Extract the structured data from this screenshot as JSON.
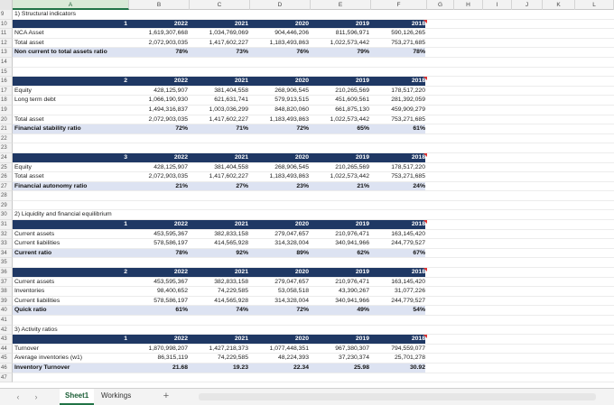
{
  "columns": [
    "A",
    "B",
    "C",
    "D",
    "E",
    "F",
    "G",
    "H",
    "I",
    "J",
    "K",
    "L"
  ],
  "selected_column": "A",
  "rows": [
    {
      "n": "9",
      "type": "sect",
      "label": "1) Structural indicators"
    },
    {
      "n": "10",
      "type": "hdr",
      "idx": "1",
      "years": [
        "2022",
        "2021",
        "2020",
        "2019",
        "2018"
      ]
    },
    {
      "n": "11",
      "type": "data",
      "label": "NCA Asset",
      "vals": [
        "1,619,307,668",
        "1,034,769,069",
        "904,446,206",
        "811,596,971",
        "590,126,265"
      ]
    },
    {
      "n": "12",
      "type": "data",
      "label": "Total asset",
      "vals": [
        "2,072,903,035",
        "1,417,602,227",
        "1,183,493,863",
        "1,022,573,442",
        "753,271,685"
      ]
    },
    {
      "n": "13",
      "type": "ratio",
      "label": "Non current to total assets ratio",
      "vals": [
        "78%",
        "73%",
        "76%",
        "79%",
        "78%"
      ]
    },
    {
      "n": "14",
      "type": "blank"
    },
    {
      "n": "15",
      "type": "blank"
    },
    {
      "n": "16",
      "type": "hdr",
      "idx": "2",
      "years": [
        "2022",
        "2021",
        "2020",
        "2019",
        "2018"
      ]
    },
    {
      "n": "17",
      "type": "data",
      "label": "Equity",
      "vals": [
        "428,125,907",
        "381,404,558",
        "268,906,545",
        "210,265,569",
        "178,517,220"
      ]
    },
    {
      "n": "18",
      "type": "data",
      "label": "Long term debt",
      "vals": [
        "1,066,190,930",
        "621,631,741",
        "579,913,515",
        "451,609,561",
        "281,392,059"
      ]
    },
    {
      "n": "19",
      "type": "data",
      "label": "",
      "vals": [
        "1,494,316,837",
        "1,003,036,299",
        "848,820,060",
        "661,875,130",
        "459,909,279"
      ]
    },
    {
      "n": "20",
      "type": "data",
      "label": "Total asset",
      "vals": [
        "2,072,903,035",
        "1,417,602,227",
        "1,183,493,863",
        "1,022,573,442",
        "753,271,685"
      ]
    },
    {
      "n": "21",
      "type": "ratio",
      "label": "Financial stability ratio",
      "vals": [
        "72%",
        "71%",
        "72%",
        "65%",
        "61%"
      ]
    },
    {
      "n": "22",
      "type": "blank"
    },
    {
      "n": "23",
      "type": "blank"
    },
    {
      "n": "24",
      "type": "hdr",
      "idx": "3",
      "years": [
        "2022",
        "2021",
        "2020",
        "2019",
        "2018"
      ]
    },
    {
      "n": "25",
      "type": "data",
      "label": "Equity",
      "vals": [
        "428,125,907",
        "381,404,558",
        "268,906,545",
        "210,265,569",
        "178,517,220"
      ]
    },
    {
      "n": "26",
      "type": "data",
      "label": "Total asset",
      "vals": [
        "2,072,903,035",
        "1,417,602,227",
        "1,183,493,863",
        "1,022,573,442",
        "753,271,685"
      ]
    },
    {
      "n": "27",
      "type": "ratio",
      "label": "Financial autonomy ratio",
      "vals": [
        "21%",
        "27%",
        "23%",
        "21%",
        "24%"
      ]
    },
    {
      "n": "28",
      "type": "blank"
    },
    {
      "n": "29",
      "type": "blank"
    },
    {
      "n": "30",
      "type": "sect",
      "label": "2) Liquidity and financial equilibrium"
    },
    {
      "n": "31",
      "type": "hdr",
      "idx": "1",
      "years": [
        "2022",
        "2021",
        "2020",
        "2019",
        "2018"
      ]
    },
    {
      "n": "32",
      "type": "data",
      "label": "Current assets",
      "vals": [
        "453,595,367",
        "382,833,158",
        "279,047,657",
        "210,976,471",
        "163,145,420"
      ]
    },
    {
      "n": "33",
      "type": "data",
      "label": "Current liabilities",
      "vals": [
        "578,586,197",
        "414,565,928",
        "314,328,004",
        "340,941,966",
        "244,779,527"
      ]
    },
    {
      "n": "34",
      "type": "ratio",
      "label": "Current ratio",
      "vals": [
        "78%",
        "92%",
        "89%",
        "62%",
        "67%"
      ]
    },
    {
      "n": "35",
      "type": "blank"
    },
    {
      "n": "36",
      "type": "hdr",
      "idx": "2",
      "years": [
        "2022",
        "2021",
        "2020",
        "2019",
        "2018"
      ]
    },
    {
      "n": "37",
      "type": "data",
      "label": "Current assets",
      "vals": [
        "453,595,367",
        "382,833,158",
        "279,047,657",
        "210,976,471",
        "163,145,420"
      ]
    },
    {
      "n": "38",
      "type": "data",
      "label": "Inventories",
      "vals": [
        "98,400,652",
        "74,229,585",
        "53,058,518",
        "43,390,267",
        "31,077,226"
      ]
    },
    {
      "n": "39",
      "type": "data",
      "label": "Current liabilities",
      "vals": [
        "578,586,197",
        "414,565,928",
        "314,328,004",
        "340,941,966",
        "244,779,527"
      ]
    },
    {
      "n": "40",
      "type": "ratio",
      "label": "Quick ratio",
      "vals": [
        "61%",
        "74%",
        "72%",
        "49%",
        "54%"
      ]
    },
    {
      "n": "41",
      "type": "blank"
    },
    {
      "n": "42",
      "type": "sect",
      "label": "3) Activity ratios"
    },
    {
      "n": "43",
      "type": "hdr",
      "idx": "1",
      "years": [
        "2022",
        "2021",
        "2020",
        "2019",
        "2018"
      ]
    },
    {
      "n": "44",
      "type": "data",
      "label": "Turnover",
      "vals": [
        "1,870,998,207",
        "1,427,218,373",
        "1,077,448,351",
        "967,380,307",
        "794,559,077"
      ]
    },
    {
      "n": "45",
      "type": "data",
      "label": "Average  inventories (w1)",
      "vals": [
        "86,315,119",
        "74,229,585",
        "48,224,393",
        "37,230,374",
        "25,701,278"
      ]
    },
    {
      "n": "46",
      "type": "ratio",
      "label": "Inventory Turnover",
      "vals": [
        "21.68",
        "19.23",
        "22.34",
        "25.98",
        "30.92"
      ]
    },
    {
      "n": "47",
      "type": "blank"
    }
  ],
  "tabs": [
    {
      "label": "Sheet1",
      "active": true
    },
    {
      "label": "Workings",
      "active": false
    }
  ],
  "add_sheet_symbol": "+",
  "nav_prev": "‹",
  "nav_next": "›"
}
